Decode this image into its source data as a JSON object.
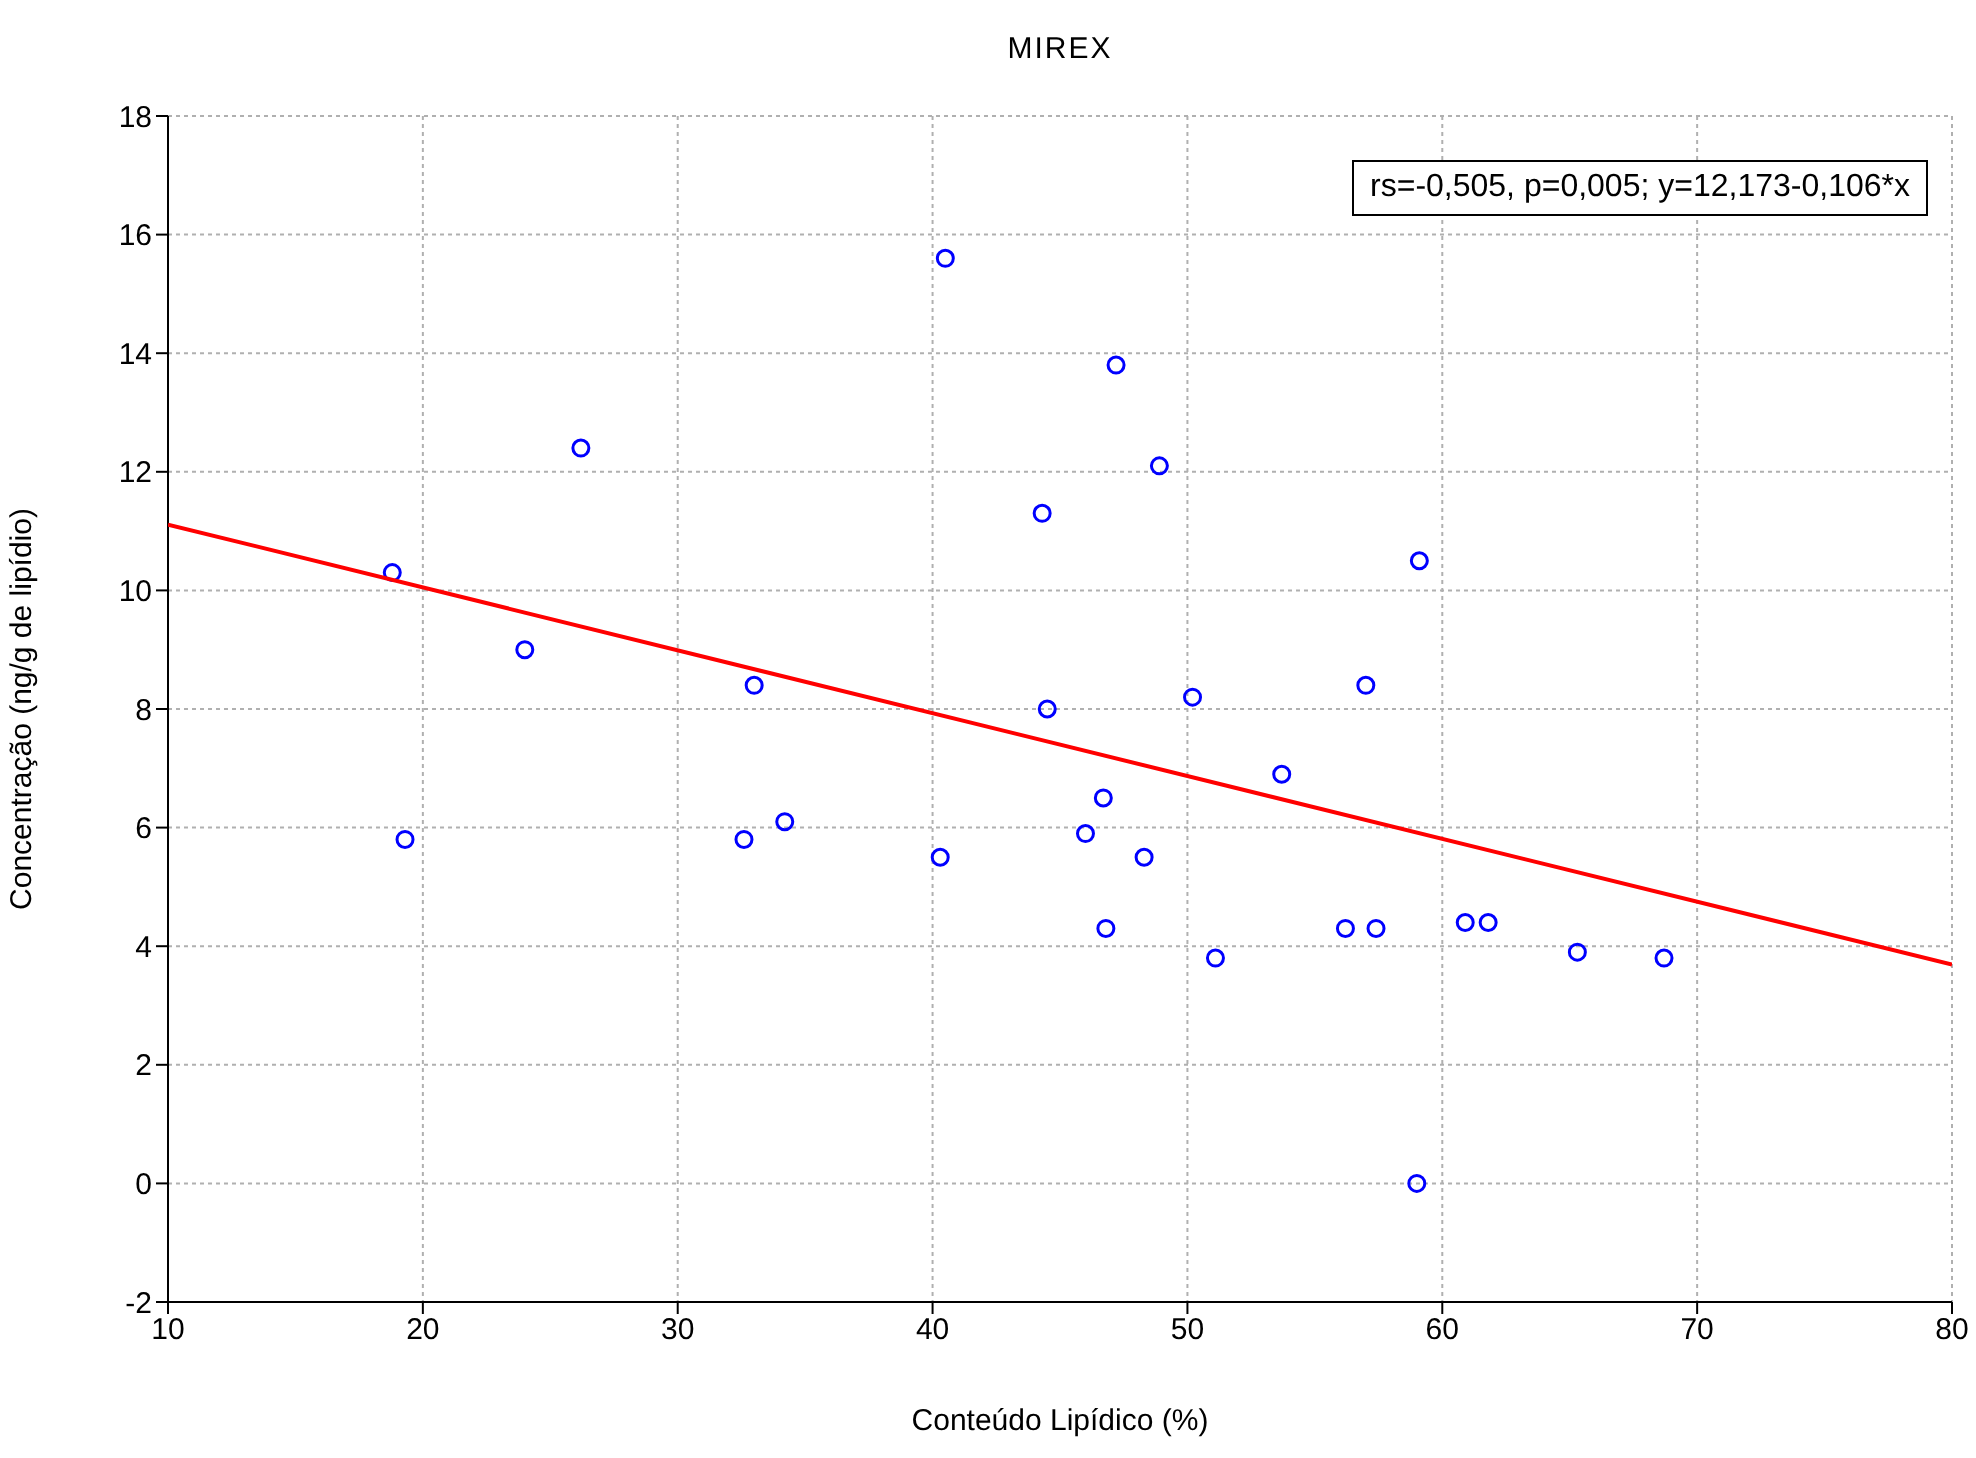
{
  "chart_data": {
    "type": "scatter",
    "title": "MIREX",
    "xlabel": "Conteúdo Lipídico (%)",
    "ylabel": "Concentração (ng/g de lipídio)",
    "annotations": [
      "rs=-0,505, p=0,005; y=12,173-0,106*x"
    ],
    "xlim": [
      10,
      80
    ],
    "xticks": [
      10,
      20,
      30,
      40,
      50,
      60,
      70,
      80
    ],
    "ylim": [
      -2,
      18
    ],
    "yticks": [
      -2,
      0,
      2,
      4,
      6,
      8,
      10,
      12,
      14,
      16,
      18
    ],
    "grid": true,
    "series": [
      {
        "marker": "circle",
        "color": "#0000ff",
        "x": [
          18.8,
          19.3,
          24.0,
          26.2,
          32.6,
          33.0,
          34.2,
          40.3,
          40.5,
          44.3,
          44.5,
          46.0,
          46.7,
          46.8,
          47.2,
          48.3,
          48.9,
          50.2,
          51.1,
          53.7,
          56.2,
          57.0,
          57.4,
          59.0,
          59.1,
          60.9,
          61.8,
          65.3,
          68.7
        ],
        "values": [
          10.3,
          5.8,
          9.0,
          12.4,
          5.8,
          8.4,
          6.1,
          5.5,
          15.6,
          11.3,
          8.0,
          5.9,
          6.5,
          4.3,
          13.8,
          5.5,
          12.1,
          8.2,
          3.8,
          6.9,
          4.3,
          8.4,
          4.3,
          0,
          10.5,
          4.4,
          4.4,
          3.9,
          3.8
        ]
      },
      {
        "type": "line",
        "marker": "none",
        "color": "#ff0000",
        "x": [
          10,
          80
        ],
        "values": [
          11.11,
          3.69
        ]
      }
    ]
  }
}
